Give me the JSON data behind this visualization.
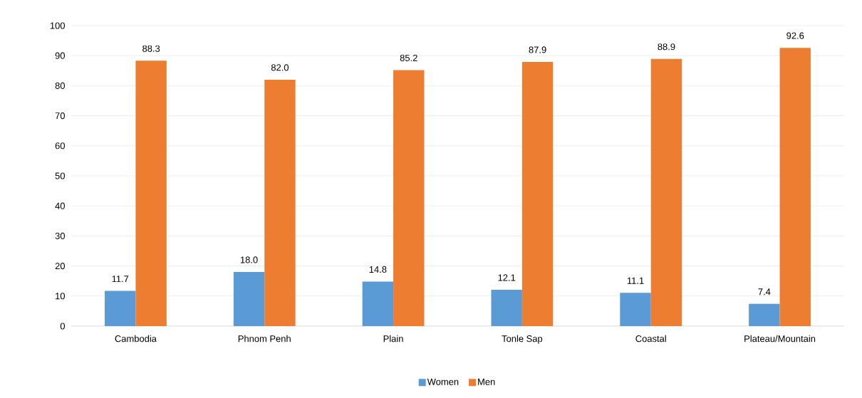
{
  "chart_data": {
    "type": "bar",
    "categories": [
      "Cambodia",
      "Phnom Penh",
      "Plain",
      "Tonle Sap",
      "Coastal",
      "Plateau/Mountain"
    ],
    "series": [
      {
        "name": "Women",
        "color": "#5b9bd5",
        "values": [
          11.7,
          18.0,
          14.8,
          12.1,
          11.1,
          7.4
        ],
        "value_labels": [
          "11.7",
          "18.0",
          "14.8",
          "12.1",
          "11.1",
          "7.4"
        ]
      },
      {
        "name": "Men",
        "color": "#ed7d31",
        "values": [
          88.3,
          82.0,
          85.2,
          87.9,
          88.9,
          92.6
        ],
        "value_labels": [
          "88.3",
          "82.0",
          "85.2",
          "87.9",
          "88.9",
          "92.6"
        ]
      }
    ],
    "ylim": [
      0,
      100
    ],
    "yticks": [
      0,
      10,
      20,
      30,
      40,
      50,
      60,
      70,
      80,
      90,
      100
    ],
    "grid": "y",
    "legend": "bottom"
  }
}
